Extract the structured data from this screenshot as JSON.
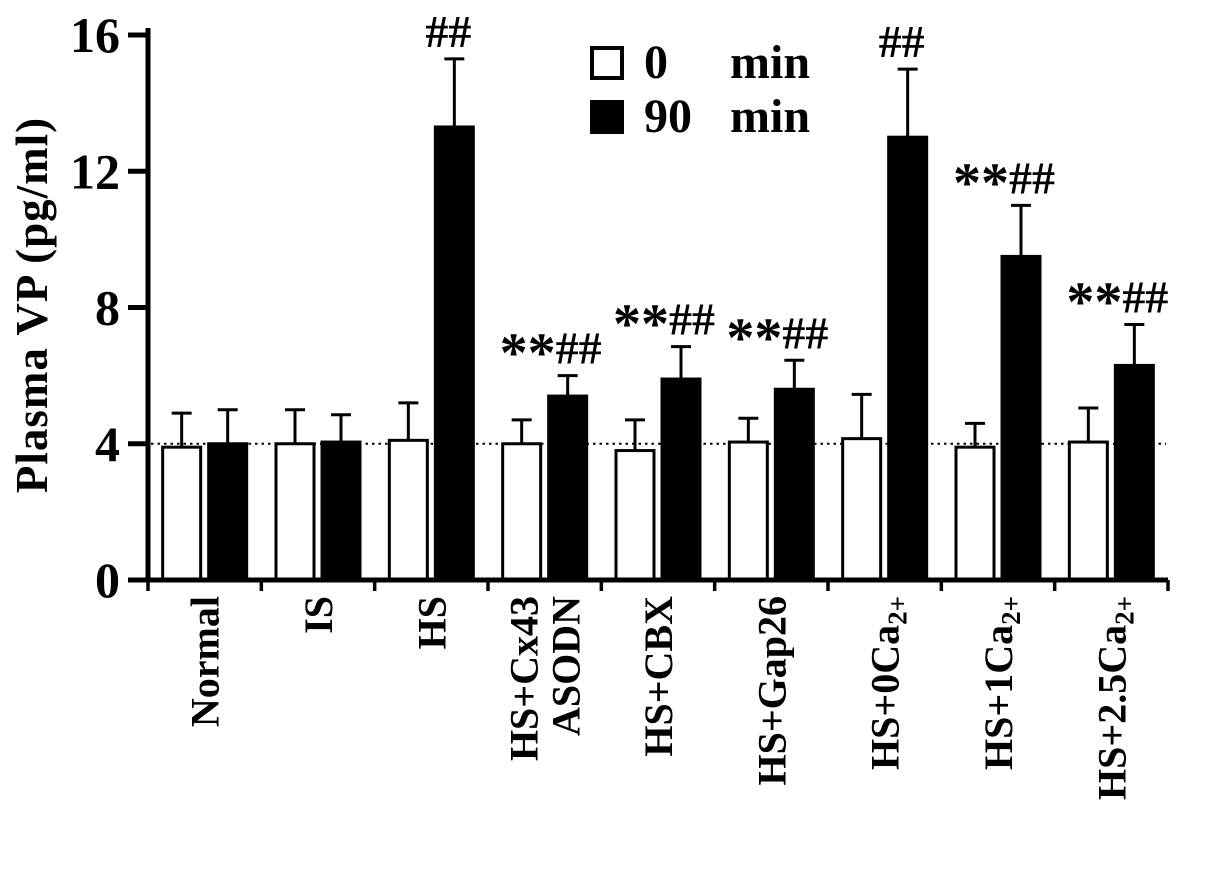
{
  "figure": {
    "background": "#ffffff",
    "ink": "#000000"
  },
  "legend": {
    "position": "top-center",
    "items": [
      {
        "marker": "open-square",
        "color": "#ffffff",
        "value": "0",
        "unit": "min",
        "series": "0 min"
      },
      {
        "marker": "filled-square",
        "color": "#000000",
        "value": "90",
        "unit": "min",
        "series": "90 min"
      }
    ]
  },
  "chart_data": {
    "type": "bar",
    "title": "",
    "xlabel": "",
    "ylabel": "Plasma VP (pg/ml)",
    "ylim": [
      0,
      16
    ],
    "yticks": [
      0,
      4,
      8,
      12,
      16
    ],
    "grid": false,
    "legend_position": "top-center",
    "reference_line": {
      "y": 4,
      "style": "dotted"
    },
    "categories": [
      {
        "name": "Normal",
        "label": "Normal"
      },
      {
        "name": "IS",
        "label": "IS"
      },
      {
        "name": "HS",
        "label": "HS"
      },
      {
        "name": "HS+Cx43 ASODN",
        "label": "HS+Cx43",
        "line2": "ASODN"
      },
      {
        "name": "HS+CBX",
        "label": "HS+CBX"
      },
      {
        "name": "HS+Gap26",
        "label": "HS+Gap26"
      },
      {
        "name": "HS+0Ca2+",
        "label": "HS+0Ca",
        "sup": "2+"
      },
      {
        "name": "HS+1Ca2+",
        "label": "HS+1Ca",
        "sup": "2+"
      },
      {
        "name": "HS+2.5Ca2+",
        "label": "HS+2.5Ca",
        "sup": "2+"
      }
    ],
    "series": [
      {
        "name": "0 min",
        "fill": "#ffffff",
        "values": [
          3.9,
          4.0,
          4.1,
          4.0,
          3.8,
          4.05,
          4.15,
          3.9,
          4.05
        ],
        "errors": [
          1.0,
          1.0,
          1.1,
          0.7,
          0.9,
          0.7,
          1.3,
          0.7,
          1.0
        ]
      },
      {
        "name": "90 min",
        "fill": "#000000",
        "values": [
          4.0,
          4.05,
          13.3,
          5.4,
          5.9,
          5.6,
          13.0,
          9.5,
          6.3
        ],
        "errors": [
          1.0,
          0.8,
          2.0,
          0.6,
          0.95,
          0.85,
          2.0,
          1.5,
          1.2
        ]
      }
    ],
    "annotations": [
      "",
      "",
      "##",
      "**##",
      "**##",
      "**##",
      "##",
      "**##",
      "**##"
    ]
  }
}
